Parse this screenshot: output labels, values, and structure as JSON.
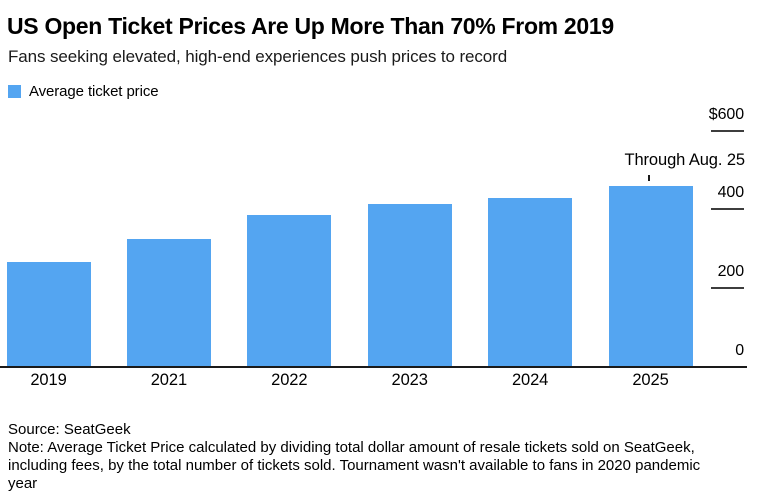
{
  "header": {
    "title": "US Open Ticket Prices Are Up More Than 70% From 2019",
    "subtitle": "Fans seeking elevated, high-end experiences push prices to record"
  },
  "legend": {
    "label": "Average ticket price",
    "swatch_color": "#54a5f1"
  },
  "chart_data": {
    "type": "bar",
    "title": "US Open Ticket Prices Are Up More Than 70% From 2019",
    "subtitle": "Fans seeking elevated, high-end experiences push prices to record",
    "categories": [
      "2019",
      "2021",
      "2022",
      "2023",
      "2024",
      "2025"
    ],
    "series": [
      {
        "name": "Average ticket price",
        "values": [
          265,
          325,
          385,
          415,
          430,
          460
        ]
      }
    ],
    "unit": "USD",
    "bar_color": "#54a5f1",
    "xlabel": "",
    "ylabel": "",
    "ylim": [
      0,
      600
    ],
    "y_axis": {
      "side": "right",
      "ticks": [
        600,
        400,
        200,
        0
      ],
      "tick_labels": [
        "$600",
        "400",
        "200",
        "0"
      ]
    },
    "grid": false,
    "legend_position": "top-left",
    "annotation": {
      "text": "Through Aug. 25",
      "target_category": "2025"
    }
  },
  "footer": {
    "source": "Source: SeatGeek",
    "note_lines": [
      "Note: Average Ticket Price calculated by dividing total dollar amount of resale tickets sold on SeatGeek,",
      "including fees, by the total number of tickets sold. Tournament wasn't available to fans in 2020 pandemic",
      "year"
    ]
  }
}
